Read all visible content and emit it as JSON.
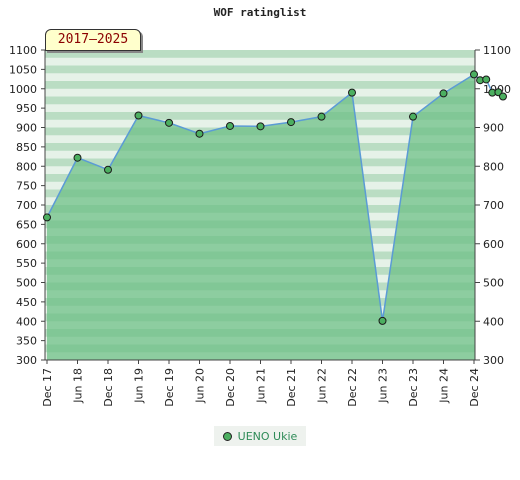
{
  "chart_data": {
    "type": "area",
    "title": "WOF ratinglist",
    "range_label": "2017–2025",
    "x": [
      "Dec 17",
      "Jun 18",
      "Dec 18",
      "Jun 19",
      "Dec 19",
      "Jun 20",
      "Dec 20",
      "Jun 21",
      "Dec 21",
      "Jun 22",
      "Dec 22",
      "Jun 23",
      "Dec 23",
      "Jun 24",
      "Dec 24"
    ],
    "x_tick_labels": [
      "Dec 17",
      "Jun 18",
      "Dec 18",
      "Jun 19",
      "Dec 19",
      "Jun 20",
      "Dec 20",
      "Jun 21",
      "Dec 21",
      "Jun 22",
      "Dec 22",
      "Jun 23",
      "Dec 23",
      "Jun 24",
      "Dec 24"
    ],
    "y_ticks": [
      300,
      350,
      400,
      450,
      500,
      550,
      600,
      650,
      700,
      750,
      800,
      850,
      900,
      950,
      1000,
      1050,
      1100
    ],
    "y_ticks_right": [
      300,
      400,
      500,
      600,
      700,
      800,
      900,
      1000,
      1100
    ],
    "ylim": [
      300,
      1100
    ],
    "series": [
      {
        "name": "UENO Ukie",
        "color": "#4caf60",
        "line_color": "#5b9bd5",
        "points": [
          {
            "t": 0.0,
            "y": 668
          },
          {
            "t": 1.0,
            "y": 822
          },
          {
            "t": 2.0,
            "y": 791
          },
          {
            "t": 3.0,
            "y": 931
          },
          {
            "t": 4.0,
            "y": 912
          },
          {
            "t": 5.0,
            "y": 884
          },
          {
            "t": 6.0,
            "y": 904
          },
          {
            "t": 7.0,
            "y": 903
          },
          {
            "t": 8.0,
            "y": 914
          },
          {
            "t": 9.0,
            "y": 928
          },
          {
            "t": 10.0,
            "y": 990
          },
          {
            "t": 11.0,
            "y": 401
          },
          {
            "t": 12.0,
            "y": 928
          },
          {
            "t": 13.0,
            "y": 988
          },
          {
            "t": 14.0,
            "y": 1037
          },
          {
            "t": 14.2,
            "y": 1022
          },
          {
            "t": 14.4,
            "y": 1024
          },
          {
            "t": 14.6,
            "y": 990
          },
          {
            "t": 14.8,
            "y": 991
          },
          {
            "t": 14.95,
            "y": 980
          }
        ]
      }
    ],
    "legend": {
      "placement": "bottom-center"
    },
    "grid": true
  }
}
